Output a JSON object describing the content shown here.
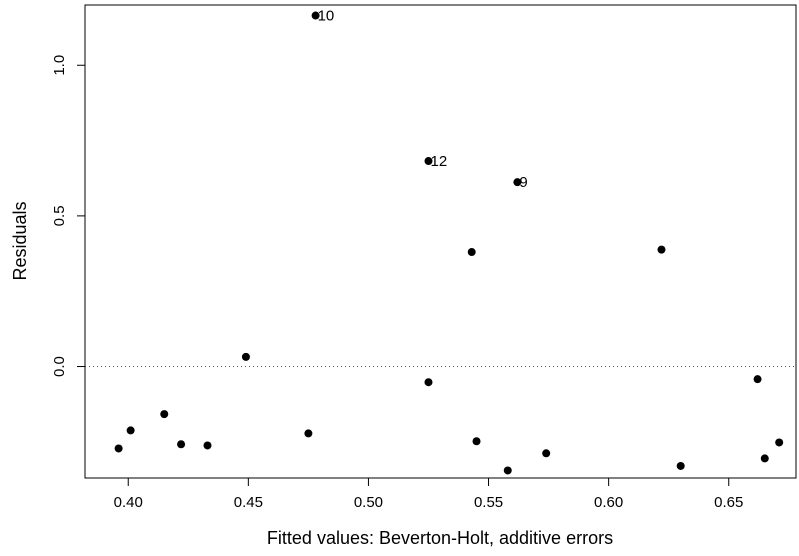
{
  "chart_data": {
    "type": "scatter",
    "title": "",
    "xlabel": "Fitted values: Beverton-Holt, additive errors",
    "ylabel": "Residuals",
    "xlim": [
      0.382,
      0.678
    ],
    "ylim": [
      -0.37,
      1.2
    ],
    "x_ticks": [
      0.4,
      0.45,
      0.5,
      0.55,
      0.6,
      0.65
    ],
    "x_tick_labels": [
      "0.40",
      "0.45",
      "0.50",
      "0.55",
      "0.60",
      "0.65"
    ],
    "y_ticks": [
      0.0,
      0.5,
      1.0
    ],
    "y_tick_labels": [
      "0.0",
      "0.5",
      "1.0"
    ],
    "reference_line": {
      "y": 0,
      "style": "dotted"
    },
    "grid": false,
    "legend": "none",
    "point_color": "#000000",
    "points": [
      {
        "x": 0.396,
        "y": -0.272
      },
      {
        "x": 0.401,
        "y": -0.212
      },
      {
        "x": 0.415,
        "y": -0.158
      },
      {
        "x": 0.422,
        "y": -0.258
      },
      {
        "x": 0.433,
        "y": -0.262
      },
      {
        "x": 0.449,
        "y": 0.032
      },
      {
        "x": 0.475,
        "y": -0.222
      },
      {
        "x": 0.478,
        "y": 1.165,
        "label": "10"
      },
      {
        "x": 0.525,
        "y": 0.682,
        "label": "12"
      },
      {
        "x": 0.525,
        "y": -0.052
      },
      {
        "x": 0.543,
        "y": 0.38
      },
      {
        "x": 0.545,
        "y": -0.248
      },
      {
        "x": 0.558,
        "y": -0.345
      },
      {
        "x": 0.562,
        "y": 0.612,
        "label": "9"
      },
      {
        "x": 0.574,
        "y": -0.288
      },
      {
        "x": 0.622,
        "y": 0.388
      },
      {
        "x": 0.63,
        "y": -0.33
      },
      {
        "x": 0.662,
        "y": -0.042
      },
      {
        "x": 0.665,
        "y": -0.305
      },
      {
        "x": 0.671,
        "y": -0.252
      }
    ]
  }
}
